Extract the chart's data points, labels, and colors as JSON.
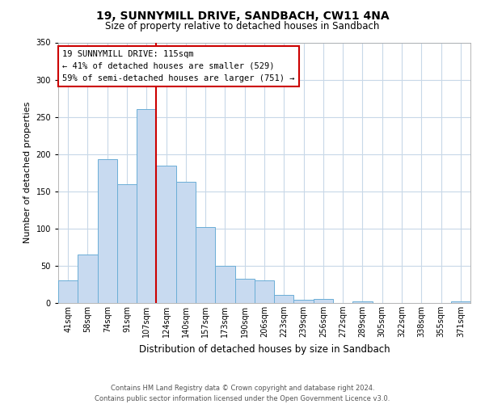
{
  "title": "19, SUNNYMILL DRIVE, SANDBACH, CW11 4NA",
  "subtitle": "Size of property relative to detached houses in Sandbach",
  "xlabel": "Distribution of detached houses by size in Sandbach",
  "ylabel": "Number of detached properties",
  "footer_line1": "Contains HM Land Registry data © Crown copyright and database right 2024.",
  "footer_line2": "Contains public sector information licensed under the Open Government Licence v3.0.",
  "bin_labels": [
    "41sqm",
    "58sqm",
    "74sqm",
    "91sqm",
    "107sqm",
    "124sqm",
    "140sqm",
    "157sqm",
    "173sqm",
    "190sqm",
    "206sqm",
    "223sqm",
    "239sqm",
    "256sqm",
    "272sqm",
    "289sqm",
    "305sqm",
    "322sqm",
    "338sqm",
    "355sqm",
    "371sqm"
  ],
  "bar_heights": [
    30,
    65,
    193,
    160,
    261,
    184,
    163,
    102,
    50,
    33,
    30,
    11,
    4,
    5,
    0,
    2,
    0,
    0,
    0,
    0,
    2
  ],
  "bar_color": "#c8daf0",
  "bar_edge_color": "#6baed6",
  "ylim": [
    0,
    350
  ],
  "yticks": [
    0,
    50,
    100,
    150,
    200,
    250,
    300,
    350
  ],
  "vline_x": 4.5,
  "vline_color": "#cc0000",
  "annotation_title": "19 SUNNYMILL DRIVE: 115sqm",
  "annotation_line1": "← 41% of detached houses are smaller (529)",
  "annotation_line2": "59% of semi-detached houses are larger (751) →",
  "annotation_box_color": "#cc0000",
  "background_color": "#ffffff",
  "grid_color": "#c8d8e8",
  "title_fontsize": 10,
  "subtitle_fontsize": 8.5,
  "ylabel_fontsize": 8,
  "xlabel_fontsize": 8.5,
  "tick_fontsize": 7,
  "footer_fontsize": 6,
  "annotation_fontsize": 7.5
}
